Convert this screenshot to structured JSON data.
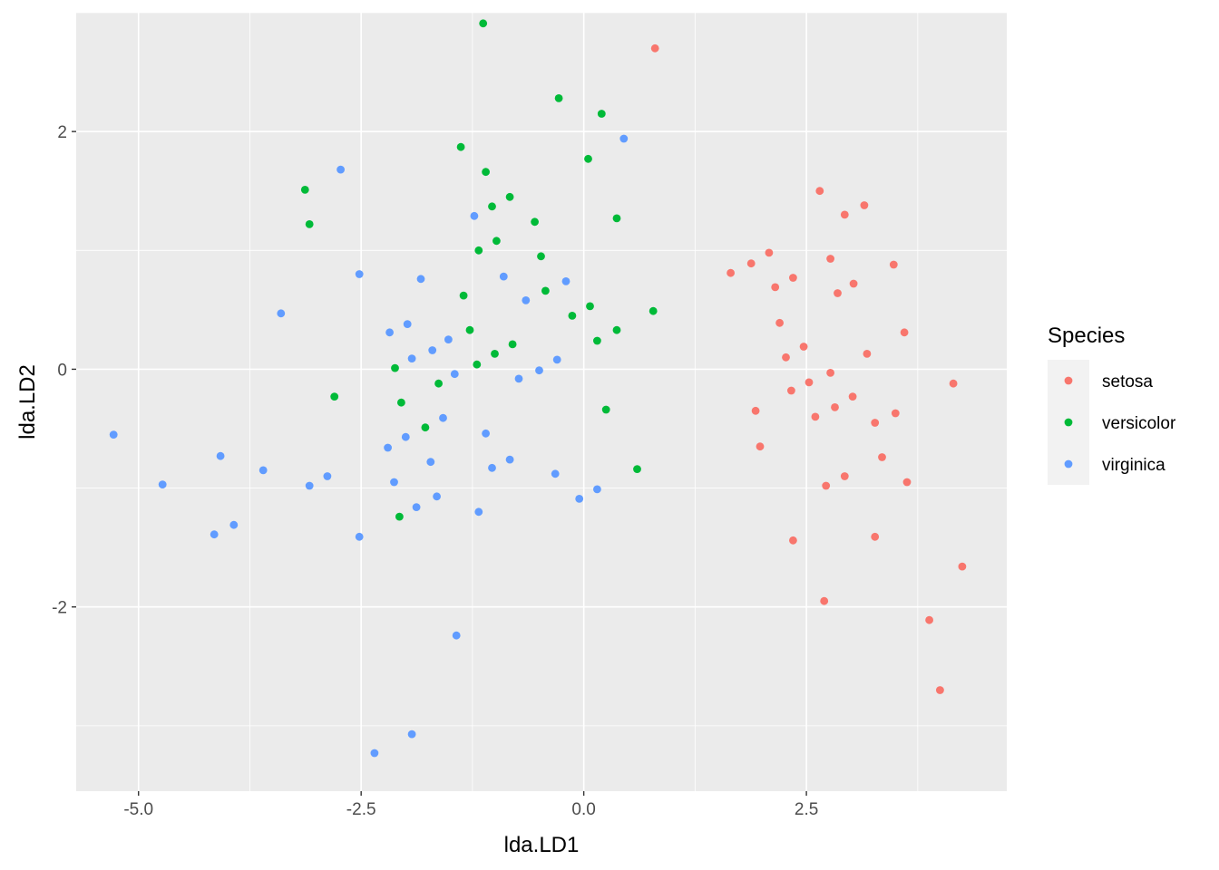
{
  "chart_data": {
    "type": "scatter",
    "title": "",
    "xlabel": "lda.LD1",
    "ylabel": "lda.LD2",
    "xlim": [
      -5.7,
      4.75
    ],
    "ylim": [
      -3.55,
      3.0
    ],
    "xticks": [
      -5.0,
      -2.5,
      0.0,
      2.5
    ],
    "xtick_labels": [
      "-5.0",
      "-2.5",
      "0.0",
      "2.5"
    ],
    "yticks": [
      -2,
      0,
      2
    ],
    "ytick_labels": [
      "-2",
      "0",
      "2"
    ],
    "grid": true,
    "background": "#EBEBEB",
    "legend": {
      "title": "Species",
      "position": "right"
    },
    "series": [
      {
        "name": "setosa",
        "color": "#F8766D",
        "points": [
          [
            0.8,
            2.7
          ],
          [
            2.65,
            1.5
          ],
          [
            3.15,
            1.38
          ],
          [
            2.93,
            1.3
          ],
          [
            2.08,
            0.98
          ],
          [
            1.88,
            0.89
          ],
          [
            1.65,
            0.81
          ],
          [
            2.77,
            0.93
          ],
          [
            3.48,
            0.88
          ],
          [
            2.35,
            0.77
          ],
          [
            2.15,
            0.69
          ],
          [
            3.03,
            0.72
          ],
          [
            2.85,
            0.64
          ],
          [
            2.2,
            0.39
          ],
          [
            3.6,
            0.31
          ],
          [
            2.47,
            0.19
          ],
          [
            3.18,
            0.13
          ],
          [
            2.27,
            0.1
          ],
          [
            2.77,
            -0.03
          ],
          [
            2.53,
            -0.11
          ],
          [
            4.15,
            -0.12
          ],
          [
            2.33,
            -0.18
          ],
          [
            3.02,
            -0.23
          ],
          [
            1.93,
            -0.35
          ],
          [
            2.82,
            -0.32
          ],
          [
            3.5,
            -0.37
          ],
          [
            2.6,
            -0.4
          ],
          [
            3.27,
            -0.45
          ],
          [
            1.98,
            -0.65
          ],
          [
            3.35,
            -0.74
          ],
          [
            2.93,
            -0.9
          ],
          [
            3.63,
            -0.95
          ],
          [
            2.72,
            -0.98
          ],
          [
            3.27,
            -1.41
          ],
          [
            2.35,
            -1.44
          ],
          [
            4.25,
            -1.66
          ],
          [
            2.7,
            -1.95
          ],
          [
            3.88,
            -2.11
          ],
          [
            4.0,
            -2.7
          ]
        ]
      },
      {
        "name": "versicolor",
        "color": "#00BA38",
        "points": [
          [
            -1.13,
            2.91
          ],
          [
            -0.28,
            2.28
          ],
          [
            0.2,
            2.15
          ],
          [
            -1.38,
            1.87
          ],
          [
            0.05,
            1.77
          ],
          [
            -1.1,
            1.66
          ],
          [
            -3.13,
            1.51
          ],
          [
            -0.83,
            1.45
          ],
          [
            -1.03,
            1.37
          ],
          [
            0.37,
            1.27
          ],
          [
            -0.55,
            1.24
          ],
          [
            -3.08,
            1.22
          ],
          [
            -0.98,
            1.08
          ],
          [
            -1.18,
            1.0
          ],
          [
            -0.48,
            0.95
          ],
          [
            -0.43,
            0.66
          ],
          [
            -1.35,
            0.62
          ],
          [
            0.07,
            0.53
          ],
          [
            0.78,
            0.49
          ],
          [
            -0.13,
            0.45
          ],
          [
            -1.28,
            0.33
          ],
          [
            0.37,
            0.33
          ],
          [
            0.15,
            0.24
          ],
          [
            -0.8,
            0.21
          ],
          [
            -1.0,
            0.13
          ],
          [
            -1.2,
            0.04
          ],
          [
            -2.12,
            0.01
          ],
          [
            -1.63,
            -0.12
          ],
          [
            -2.8,
            -0.23
          ],
          [
            -2.05,
            -0.28
          ],
          [
            0.25,
            -0.34
          ],
          [
            -1.78,
            -0.49
          ],
          [
            0.6,
            -0.84
          ],
          [
            -2.07,
            -1.24
          ]
        ]
      },
      {
        "name": "virginica",
        "color": "#619CFF",
        "points": [
          [
            0.45,
            1.94
          ],
          [
            -2.73,
            1.68
          ],
          [
            -1.23,
            1.29
          ],
          [
            -2.52,
            0.8
          ],
          [
            -0.9,
            0.78
          ],
          [
            -1.83,
            0.76
          ],
          [
            -0.2,
            0.74
          ],
          [
            -0.65,
            0.58
          ],
          [
            -3.4,
            0.47
          ],
          [
            -1.98,
            0.38
          ],
          [
            -2.18,
            0.31
          ],
          [
            -1.52,
            0.25
          ],
          [
            -1.7,
            0.16
          ],
          [
            -1.93,
            0.09
          ],
          [
            -0.3,
            0.08
          ],
          [
            -1.45,
            -0.04
          ],
          [
            -0.5,
            -0.01
          ],
          [
            -0.73,
            -0.08
          ],
          [
            -1.58,
            -0.41
          ],
          [
            -5.28,
            -0.55
          ],
          [
            -1.1,
            -0.54
          ],
          [
            -2.0,
            -0.57
          ],
          [
            -2.2,
            -0.66
          ],
          [
            -4.08,
            -0.73
          ],
          [
            -0.83,
            -0.76
          ],
          [
            -1.72,
            -0.78
          ],
          [
            -1.03,
            -0.83
          ],
          [
            -3.6,
            -0.85
          ],
          [
            -0.32,
            -0.88
          ],
          [
            -2.88,
            -0.9
          ],
          [
            -2.13,
            -0.95
          ],
          [
            -4.73,
            -0.97
          ],
          [
            -3.08,
            -0.98
          ],
          [
            0.15,
            -1.01
          ],
          [
            -1.65,
            -1.07
          ],
          [
            -0.05,
            -1.09
          ],
          [
            -1.88,
            -1.16
          ],
          [
            -1.18,
            -1.2
          ],
          [
            -3.93,
            -1.31
          ],
          [
            -4.15,
            -1.39
          ],
          [
            -2.52,
            -1.41
          ],
          [
            -1.43,
            -2.24
          ],
          [
            -1.93,
            -3.07
          ],
          [
            -2.35,
            -3.23
          ]
        ]
      }
    ]
  }
}
